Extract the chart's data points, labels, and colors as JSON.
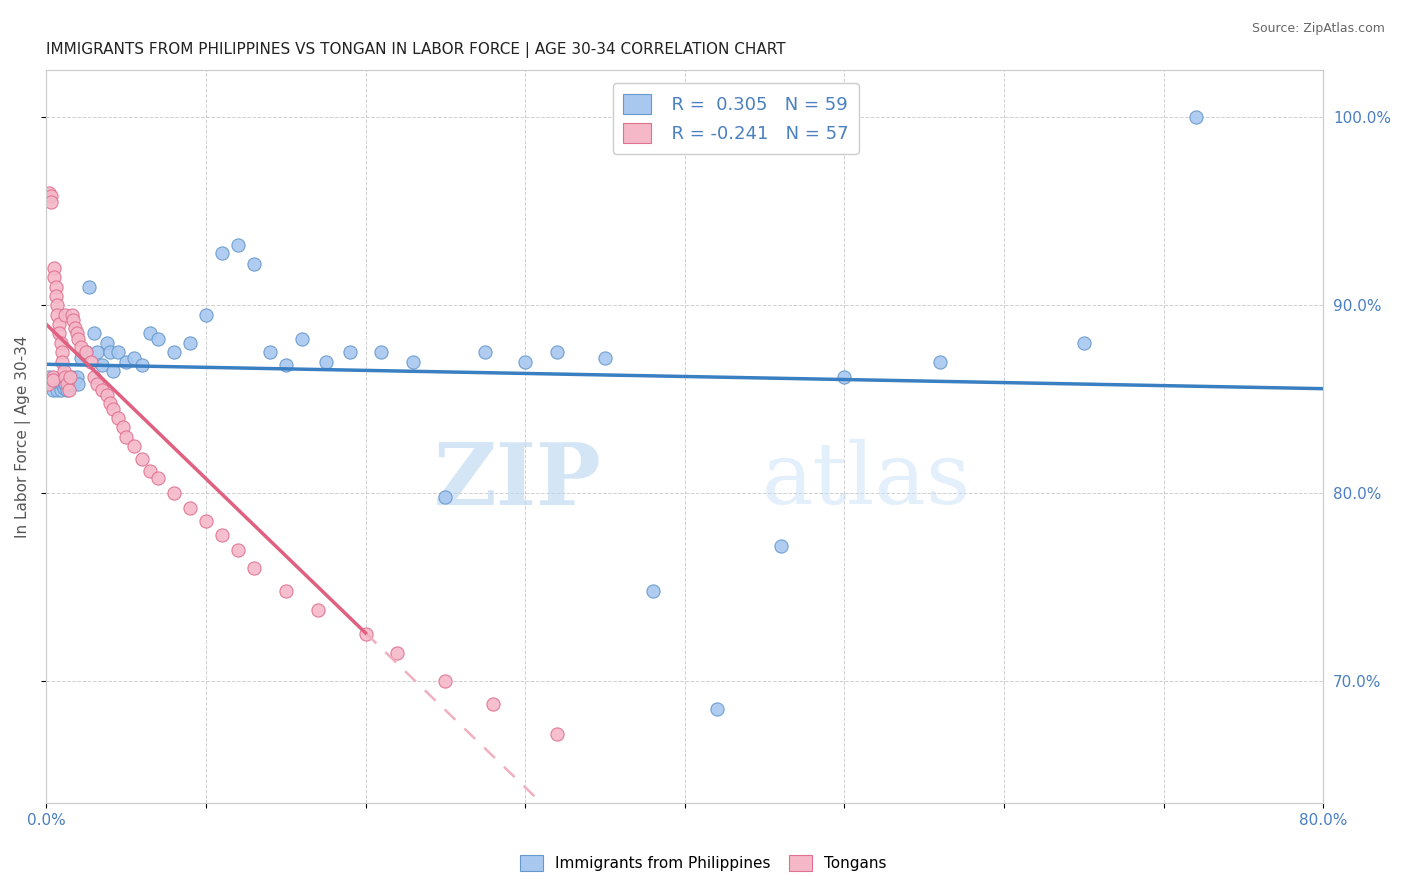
{
  "title": "IMMIGRANTS FROM PHILIPPINES VS TONGAN IN LABOR FORCE | AGE 30-34 CORRELATION CHART",
  "source": "Source: ZipAtlas.com",
  "ylabel": "In Labor Force | Age 30-34",
  "xlim": [
    0.0,
    0.8
  ],
  "ylim": [
    0.635,
    1.025
  ],
  "yticks_right": [
    0.7,
    0.8,
    0.9,
    1.0
  ],
  "ytick_right_labels": [
    "70.0%",
    "80.0%",
    "90.0%",
    "100.0%"
  ],
  "blue_color": "#a8c8f0",
  "pink_color": "#f5b8c8",
  "blue_edge_color": "#6699cc",
  "pink_edge_color": "#e07090",
  "blue_line_color": "#3a7fc1",
  "pink_line_color": "#e06080",
  "pink_dash_color": "#f0b0c0",
  "legend_label_blue": "Immigrants from Philippines",
  "legend_label_pink": "Tongans",
  "watermark_zip": "ZIP",
  "watermark_atlas": "atlas",
  "blue_x": [
    0.002,
    0.003,
    0.004,
    0.005,
    0.006,
    0.007,
    0.008,
    0.009,
    0.01,
    0.011,
    0.012,
    0.013,
    0.014,
    0.015,
    0.016,
    0.017,
    0.018,
    0.019,
    0.02,
    0.022,
    0.025,
    0.027,
    0.03,
    0.032,
    0.035,
    0.038,
    0.04,
    0.042,
    0.045,
    0.05,
    0.055,
    0.06,
    0.065,
    0.07,
    0.08,
    0.09,
    0.1,
    0.11,
    0.12,
    0.13,
    0.14,
    0.15,
    0.16,
    0.175,
    0.19,
    0.21,
    0.23,
    0.25,
    0.275,
    0.3,
    0.32,
    0.35,
    0.38,
    0.42,
    0.46,
    0.5,
    0.56,
    0.65,
    0.72
  ],
  "blue_y": [
    0.862,
    0.858,
    0.855,
    0.86,
    0.858,
    0.855,
    0.86,
    0.855,
    0.858,
    0.856,
    0.858,
    0.855,
    0.858,
    0.86,
    0.862,
    0.858,
    0.86,
    0.862,
    0.858,
    0.872,
    0.875,
    0.91,
    0.885,
    0.875,
    0.868,
    0.88,
    0.875,
    0.865,
    0.875,
    0.87,
    0.872,
    0.868,
    0.885,
    0.882,
    0.875,
    0.88,
    0.895,
    0.928,
    0.932,
    0.922,
    0.875,
    0.868,
    0.882,
    0.87,
    0.875,
    0.875,
    0.87,
    0.798,
    0.875,
    0.87,
    0.875,
    0.872,
    0.748,
    0.685,
    0.772,
    0.862,
    0.87,
    0.88,
    1.0
  ],
  "pink_x": [
    0.001,
    0.002,
    0.003,
    0.003,
    0.004,
    0.004,
    0.005,
    0.005,
    0.006,
    0.006,
    0.007,
    0.007,
    0.008,
    0.008,
    0.009,
    0.01,
    0.01,
    0.011,
    0.012,
    0.012,
    0.013,
    0.014,
    0.015,
    0.016,
    0.017,
    0.018,
    0.019,
    0.02,
    0.022,
    0.025,
    0.028,
    0.03,
    0.032,
    0.035,
    0.038,
    0.04,
    0.042,
    0.045,
    0.048,
    0.05,
    0.055,
    0.06,
    0.065,
    0.07,
    0.08,
    0.09,
    0.1,
    0.11,
    0.12,
    0.13,
    0.15,
    0.17,
    0.2,
    0.22,
    0.25,
    0.28,
    0.32
  ],
  "pink_y": [
    0.858,
    0.96,
    0.958,
    0.955,
    0.862,
    0.86,
    0.92,
    0.915,
    0.91,
    0.905,
    0.9,
    0.895,
    0.89,
    0.885,
    0.88,
    0.875,
    0.87,
    0.865,
    0.862,
    0.895,
    0.858,
    0.855,
    0.862,
    0.895,
    0.892,
    0.888,
    0.885,
    0.882,
    0.878,
    0.875,
    0.87,
    0.862,
    0.858,
    0.855,
    0.852,
    0.848,
    0.845,
    0.84,
    0.835,
    0.83,
    0.825,
    0.818,
    0.812,
    0.808,
    0.8,
    0.792,
    0.785,
    0.778,
    0.77,
    0.76,
    0.748,
    0.738,
    0.725,
    0.715,
    0.7,
    0.688,
    0.672
  ]
}
